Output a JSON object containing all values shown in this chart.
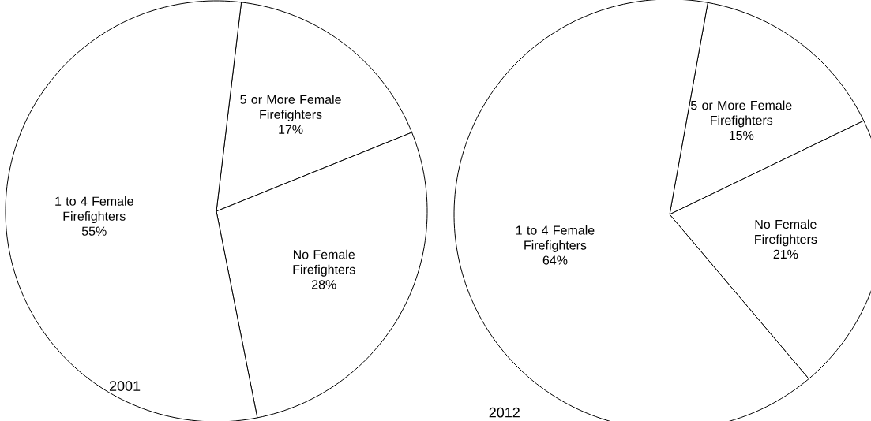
{
  "chart_data": [
    {
      "type": "pie",
      "title": "2001",
      "categories": [
        "5 or More Female Firefighters",
        "No Female Firefighters",
        "1 to 4 Female Firefighters"
      ],
      "values": [
        17,
        28,
        55
      ],
      "value_labels": [
        "17%",
        "28%",
        "55%"
      ],
      "colors": [
        "#ffffff",
        "#ffffff",
        "#ffffff"
      ]
    },
    {
      "type": "pie",
      "title": "2012",
      "categories": [
        "5 or More Female Firefighters",
        "No Female Firefighters",
        "1 to 4 Female Firefighters"
      ],
      "values": [
        15,
        21,
        64
      ],
      "value_labels": [
        "15%",
        "21%",
        "64%"
      ],
      "colors": [
        "#ffffff",
        "#ffffff",
        "#ffffff"
      ]
    }
  ]
}
